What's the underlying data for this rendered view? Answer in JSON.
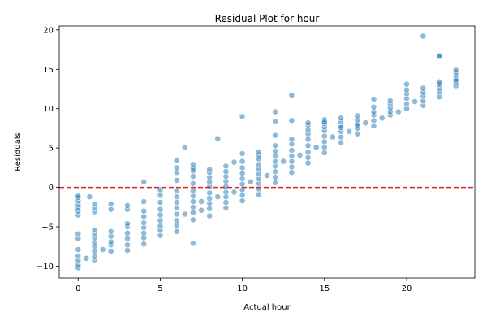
{
  "chart_data": {
    "type": "scatter",
    "title": "Residual Plot for hour",
    "xlabel": "Actual hour",
    "ylabel": "Residuals",
    "xlim": [
      -1.15,
      24.15
    ],
    "ylim": [
      -11.5,
      20.5
    ],
    "xticks": [
      0,
      5,
      10,
      15,
      20
    ],
    "yticks": [
      -10,
      -5,
      0,
      5,
      10,
      15,
      20
    ],
    "grid": false,
    "legend": "none",
    "reference_line": {
      "y": 0,
      "style": "dashed",
      "color": "#d62728"
    },
    "point_color": "#1f77b4",
    "point_alpha": 0.5,
    "series": [
      {
        "x": [
          0,
          0,
          0,
          0,
          0,
          0,
          0,
          0,
          0,
          0,
          0,
          0,
          0,
          0,
          0.5,
          0.7,
          1,
          1,
          1,
          1,
          1,
          1,
          1,
          1,
          1,
          1,
          1,
          1.5,
          2,
          2,
          2,
          2,
          2,
          2,
          2,
          3,
          3,
          3,
          3,
          3,
          3,
          3,
          3,
          4,
          4,
          4,
          4,
          4,
          4,
          4,
          4,
          4,
          5,
          5,
          5,
          5,
          5,
          5,
          5,
          5,
          5,
          6,
          6,
          6,
          6,
          6,
          6,
          6,
          6,
          6,
          6,
          6,
          6,
          6.5,
          6.5,
          7,
          7,
          7,
          7,
          7,
          7,
          7,
          7,
          7,
          7,
          7,
          7,
          7.5,
          7.5,
          8,
          8,
          8,
          8,
          8,
          8,
          8,
          8,
          8,
          8,
          8.5,
          8.5,
          9,
          9,
          9,
          9,
          9,
          9,
          9,
          9,
          9,
          9.5,
          9.5,
          10,
          10,
          10,
          10,
          10,
          10,
          10,
          10,
          10,
          10,
          10.5,
          11,
          11,
          11,
          11,
          11,
          11,
          11,
          11,
          11,
          11,
          11.5,
          12,
          12,
          12,
          12,
          12,
          12,
          12,
          12,
          12,
          12,
          12,
          12.5,
          13,
          13,
          13,
          13,
          13,
          13,
          13,
          13,
          13,
          13.5,
          14,
          14,
          14,
          14,
          14,
          14,
          14,
          14,
          14,
          14.5,
          15,
          15,
          15,
          15,
          15,
          15,
          15,
          15,
          15,
          15.5,
          16,
          16,
          16,
          16,
          16,
          16,
          16,
          16.5,
          17,
          17,
          17,
          17,
          17,
          17,
          17.5,
          18,
          18,
          18,
          18,
          18,
          18,
          18.5,
          19,
          19,
          19,
          19,
          19,
          19.5,
          20,
          20,
          20,
          20,
          20,
          20,
          20.5,
          21,
          21,
          21,
          21,
          21,
          21,
          22,
          22,
          22,
          22,
          22,
          22,
          22,
          23,
          23,
          23,
          23,
          23,
          23,
          23
        ],
        "y": [
          -10.2,
          -9.8,
          -9.3,
          -8.7,
          -7.9,
          -6.5,
          -5.9,
          -3.5,
          -3.0,
          -2.6,
          -2.2,
          -1.7,
          -1.3,
          -1.1,
          -9.0,
          -1.2,
          -9.3,
          -8.8,
          -8.1,
          -7.5,
          -7.0,
          -6.4,
          -5.9,
          -5.4,
          -3.1,
          -2.6,
          -2.1,
          -7.9,
          -8.1,
          -7.3,
          -6.9,
          -6.2,
          -5.6,
          -2.8,
          -2.1,
          -8.0,
          -7.3,
          -6.5,
          -5.8,
          -5.0,
          -4.6,
          -2.8,
          -2.3,
          -7.2,
          -6.4,
          -5.8,
          -5.1,
          -4.5,
          -3.7,
          -3.0,
          -1.8,
          0.7,
          -6.1,
          -5.4,
          -4.9,
          -4.2,
          -3.5,
          -2.8,
          -1.9,
          -1.0,
          -0.3,
          -5.6,
          -4.8,
          -4.2,
          -3.4,
          -2.6,
          -1.9,
          -1.2,
          -0.4,
          0.9,
          1.9,
          2.5,
          3.4,
          -3.4,
          5.1,
          -7.1,
          -4.1,
          -3.2,
          -2.5,
          -1.8,
          -1.1,
          -0.4,
          0.5,
          1.4,
          2.1,
          2.4,
          2.9,
          -2.9,
          -1.8,
          -3.6,
          -2.7,
          -2.0,
          -1.4,
          -0.7,
          0.1,
          0.7,
          1.3,
          1.9,
          2.3,
          -1.2,
          6.2,
          -2.6,
          -1.9,
          -1.2,
          -0.6,
          0.1,
          0.8,
          1.4,
          2.0,
          2.7,
          -0.6,
          3.2,
          -1.7,
          -1.0,
          -0.3,
          0.4,
          1.1,
          1.8,
          2.5,
          3.3,
          4.3,
          9.0,
          0.7,
          -0.9,
          -0.2,
          0.5,
          1.1,
          1.7,
          2.3,
          2.9,
          3.6,
          4.1,
          4.5,
          1.5,
          0.6,
          1.3,
          2.0,
          2.7,
          3.3,
          4.0,
          4.6,
          5.3,
          6.6,
          8.4,
          9.6,
          3.3,
          1.9,
          2.6,
          3.3,
          4.0,
          4.7,
          5.5,
          6.1,
          8.5,
          11.7,
          4.1,
          3.1,
          3.8,
          4.5,
          5.3,
          6.1,
          6.8,
          7.3,
          7.9,
          8.2,
          5.1,
          4.4,
          5.1,
          5.8,
          6.5,
          7.2,
          7.7,
          8.1,
          8.6,
          8.3,
          6.4,
          5.7,
          6.4,
          7.1,
          7.8,
          8.3,
          8.8,
          7.6,
          7.1,
          6.8,
          7.5,
          8.1,
          8.6,
          9.1,
          7.9,
          8.2,
          7.8,
          8.5,
          9.2,
          9.6,
          10.2,
          11.2,
          8.8,
          9.2,
          9.6,
          10.1,
          10.6,
          11.0,
          9.6,
          10.0,
          10.6,
          11.3,
          11.9,
          12.4,
          13.1,
          10.9,
          10.4,
          11.0,
          11.6,
          12.1,
          12.6,
          19.2,
          11.5,
          12.1,
          12.6,
          13.1,
          13.4,
          16.6,
          16.7,
          12.9,
          13.3,
          13.8,
          14.2,
          14.6,
          14.9,
          13.6
        ]
      }
    ]
  }
}
